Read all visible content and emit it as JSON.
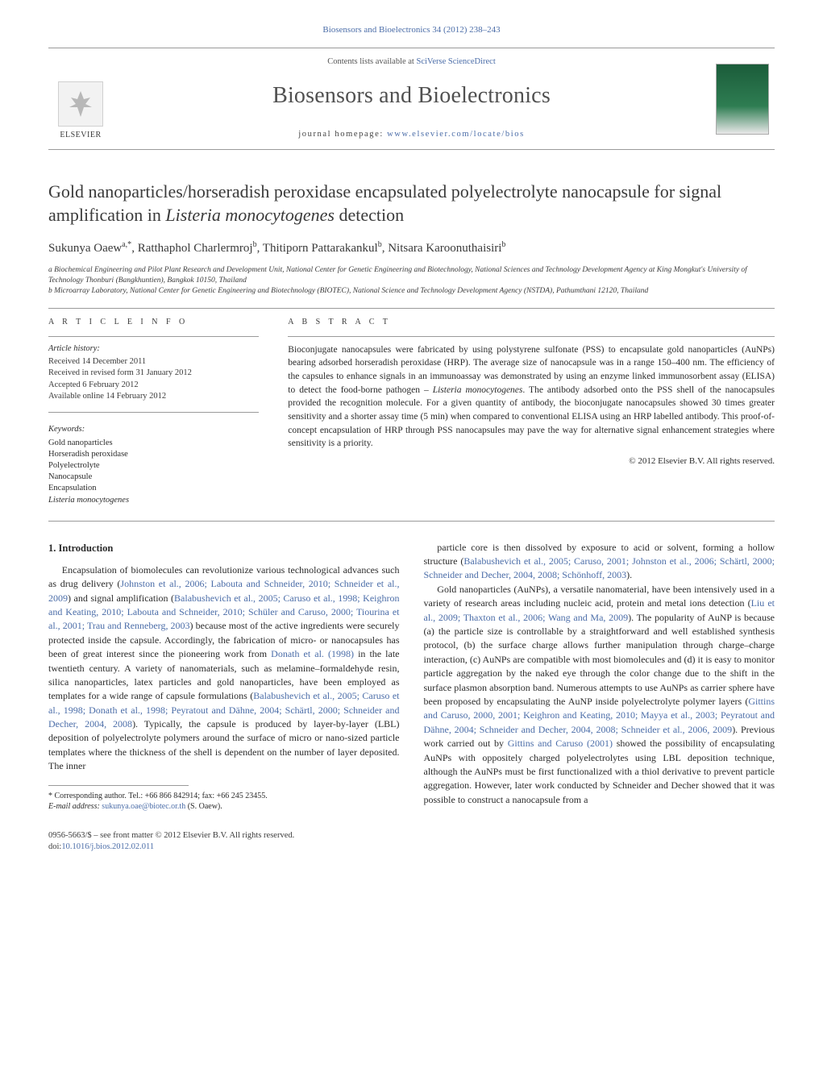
{
  "header": {
    "cite_bar": "Biosensors and Bioelectronics 34 (2012) 238–243",
    "contents_prefix": "Contents lists available at ",
    "contents_link": "SciVerse ScienceDirect",
    "journal": "Biosensors and Bioelectronics",
    "homepage_prefix": "journal homepage: ",
    "homepage_url": "www.elsevier.com/locate/bios",
    "publisher": "ELSEVIER"
  },
  "title_parts": {
    "pre": "Gold nanoparticles/horseradish peroxidase encapsulated polyelectrolyte nanocapsule for signal amplification in ",
    "italic": "Listeria monocytogenes",
    "post": " detection"
  },
  "authors_html": "Sukunya Oaew<sup>a,*</sup>, Ratthaphol Charlermroj<sup>b</sup>, Thitiporn Pattarakankul<sup>b</sup>, Nitsara Karoonuthaisiri<sup>b</sup>",
  "affiliations": {
    "a": "a Biochemical Engineering and Pilot Plant Research and Development Unit, National Center for Genetic Engineering and Biotechnology, National Sciences and Technology Development Agency at King Mongkut's University of Technology Thonburi (Bangkhuntien), Bangkok 10150, Thailand",
    "b": "b Microarray Laboratory, National Center for Genetic Engineering and Biotechnology (BIOTEC), National Science and Technology Development Agency (NSTDA), Pathumthani 12120, Thailand"
  },
  "article_info": {
    "head": "A R T I C L E  I N F O",
    "history_head": "Article history:",
    "history": [
      "Received 14 December 2011",
      "Received in revised form 31 January 2012",
      "Accepted 6 February 2012",
      "Available online 14 February 2012"
    ],
    "kw_head": "Keywords:",
    "keywords": [
      "Gold nanoparticles",
      "Horseradish peroxidase",
      "Polyelectrolyte",
      "Nanocapsule",
      "Encapsulation",
      "Listeria monocytogenes"
    ]
  },
  "abstract": {
    "head": "A B S T R A C T",
    "text_pre": "Bioconjugate nanocapsules were fabricated by using polystyrene sulfonate (PSS) to encapsulate gold nanoparticles (AuNPs) bearing adsorbed horseradish peroxidase (HRP). The average size of nanocapsule was in a range 150–400 nm. The efficiency of the capsules to enhance signals in an immunoassay was demonstrated by using an enzyme linked immunosorbent assay (ELISA) to detect the food-borne pathogen – ",
    "text_it": "Listeria monocytogenes",
    "text_post": ". The antibody adsorbed onto the PSS shell of the nanocapsules provided the recognition molecule. For a given quantity of antibody, the bioconjugate nanocapsules showed 30 times greater sensitivity and a shorter assay time (5 min) when compared to conventional ELISA using an HRP labelled antibody. This proof-of-concept encapsulation of HRP through PSS nanocapsules may pave the way for alternative signal enhancement strategies where sensitivity is a priority.",
    "copyright": "© 2012 Elsevier B.V. All rights reserved."
  },
  "section1": {
    "head": "1. Introduction",
    "p1": {
      "t0": "Encapsulation of biomolecules can revolutionize various technological advances such as drug delivery (",
      "l1": "Johnston et al., 2006; Labouta and Schneider, 2010; Schneider et al., 2009",
      "t1": ") and signal amplification (",
      "l2": "Balabushevich et al., 2005; Caruso et al., 1998; Keighron and Keating, 2010; Labouta and Schneider, 2010; Schüler and Caruso, 2000; Tiourina et al., 2001; Trau and Renneberg, 2003",
      "t2": ") because most of the active ingredients were securely protected inside the capsule. Accordingly, the fabrication of micro- or nanocapsules has been of great interest since the pioneering work from ",
      "l3": "Donath et al. (1998)",
      "t3": " in the late twentieth century. A variety of nanomaterials, such as melamine–formaldehyde resin, silica nanoparticles, latex particles and gold nanoparticles, have been employed as templates for a wide range of capsule formulations (",
      "l4": "Balabushevich et al., 2005; Caruso et al., 1998; Donath et al., 1998; Peyratout and Dähne, 2004; Schärtl, 2000; Schneider and Decher, 2004, 2008",
      "t4": "). Typically, the capsule is produced by layer-by-layer (LBL) deposition of polyelectrolyte polymers around the surface of micro or nano-sized particle templates where the thickness of the shell is dependent on the number of layer deposited. The inner"
    },
    "p2": {
      "t0": "particle core is then dissolved by exposure to acid or solvent, forming a hollow structure (",
      "l1": "Balabushevich et al., 2005; Caruso, 2001; Johnston et al., 2006; Schärtl, 2000; Schneider and Decher, 2004, 2008; Schönhoff, 2003",
      "t1": ")."
    },
    "p3": {
      "t0": "Gold nanoparticles (AuNPs), a versatile nanomaterial, have been intensively used in a variety of research areas including nucleic acid, protein and metal ions detection (",
      "l1": "Liu et al., 2009; Thaxton et al., 2006; Wang and Ma, 2009",
      "t1": "). The popularity of AuNP is because (a) the particle size is controllable by a straightforward and well established synthesis protocol, (b) the surface charge allows further manipulation through charge–charge interaction, (c) AuNPs are compatible with most biomolecules and (d) it is easy to monitor particle aggregation by the naked eye through the color change due to the shift in the surface plasmon absorption band. Numerous attempts to use AuNPs as carrier sphere have been proposed by encapsulating the AuNP inside polyelectrolyte polymer layers (",
      "l2": "Gittins and Caruso, 2000, 2001; Keighron and Keating, 2010; Mayya et al., 2003; Peyratout and Dähne, 2004; Schneider and Decher, 2004, 2008; Schneider et al., 2006, 2009",
      "t2": "). Previous work carried out by ",
      "l3": "Gittins and Caruso (2001)",
      "t3": " showed the possibility of encapsulating AuNPs with oppositely charged polyelectrolytes using LBL deposition technique, although the AuNPs must be first functionalized with a thiol derivative to prevent particle aggregation. However, later work conducted by Schneider and Decher showed that it was possible to construct a nanocapsule from a"
    }
  },
  "footnote": {
    "star": "* Corresponding author. Tel.: +66 866 842914; fax: +66 245 23455.",
    "email_label": "E-mail address:",
    "email": "sukunya.oae@biotec.or.th",
    "email_who": " (S. Oaew)."
  },
  "footer": {
    "left_line1": "0956-5663/$ – see front matter © 2012 Elsevier B.V. All rights reserved.",
    "doi_label": "doi:",
    "doi": "10.1016/j.bios.2012.02.011"
  },
  "colors": {
    "link": "#4b6da8",
    "text": "#2b2b2b",
    "rule": "#9a9a9a"
  }
}
